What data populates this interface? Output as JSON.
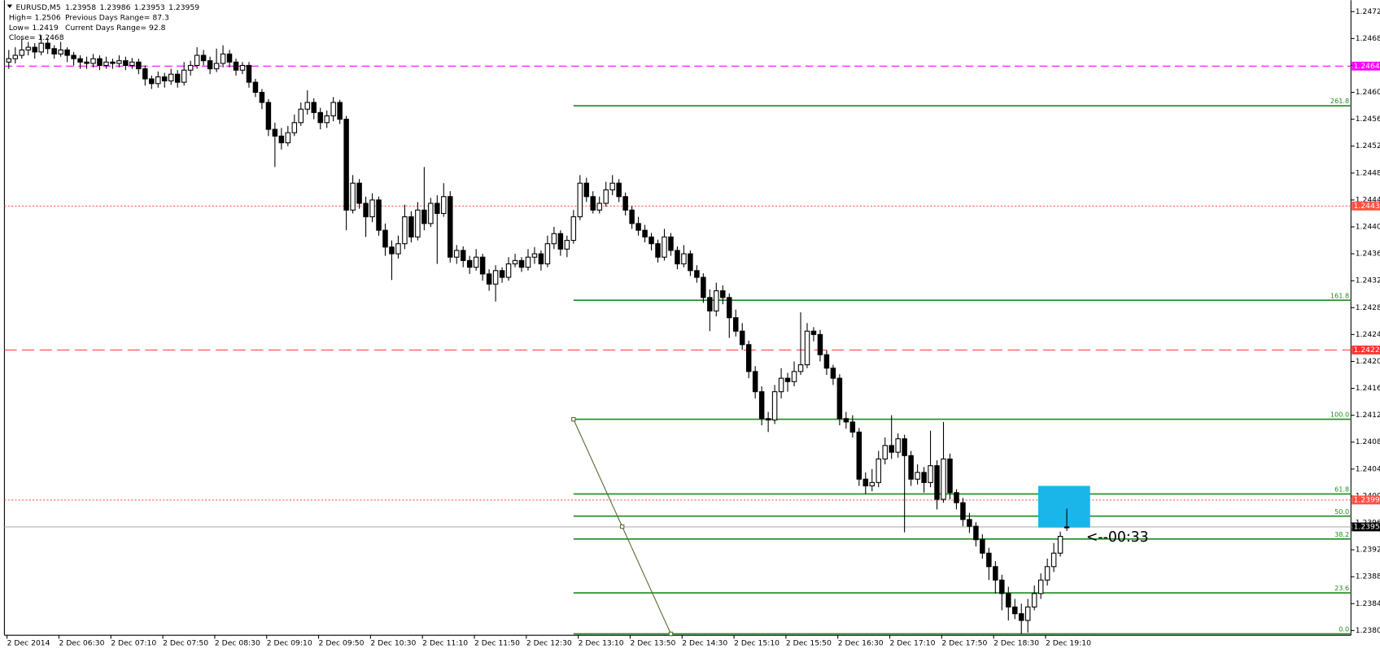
{
  "chart_data": {
    "type": "candlestick",
    "symbol": "EURUSD,M5",
    "info": [
      [
        "High= 1.2506",
        "Previous Days Range= 87.3"
      ],
      [
        "Low= 1.2419",
        "Current Days Range= 92.8"
      ],
      [
        "Close= 1.2468"
      ]
    ],
    "categories": [
      "2 Dec 2014",
      null,
      null,
      null,
      null,
      null,
      null,
      null,
      "2 Dec 06:30",
      null,
      null,
      null,
      null,
      null,
      null,
      null,
      "2 Dec 07:10",
      null,
      null,
      null,
      null,
      null,
      null,
      null,
      "2 Dec 07:50",
      null,
      null,
      null,
      null,
      null,
      null,
      null,
      "2 Dec 08:30",
      null,
      null,
      null,
      null,
      null,
      null,
      null,
      "2 Dec 09:10",
      null,
      null,
      null,
      null,
      null,
      null,
      null,
      "2 Dec 09:50",
      null,
      null,
      null,
      null,
      null,
      null,
      null,
      "2 Dec 10:30",
      null,
      null,
      null,
      null,
      null,
      null,
      null,
      "2 Dec 11:10",
      null,
      null,
      null,
      null,
      null,
      null,
      null,
      "2 Dec 11:50",
      null,
      null,
      null,
      null,
      null,
      null,
      null,
      "2 Dec 12:30",
      null,
      null,
      null,
      null,
      null,
      null,
      null,
      "2 Dec 13:10",
      null,
      null,
      null,
      null,
      null,
      null,
      null,
      "2 Dec 13:50",
      null,
      null,
      null,
      null,
      null,
      null,
      null,
      "2 Dec 14:30",
      null,
      null,
      null,
      null,
      null,
      null,
      null,
      "2 Dec 15:10",
      null,
      null,
      null,
      null,
      null,
      null,
      null,
      "2 Dec 15:50",
      null,
      null,
      null,
      null,
      null,
      null,
      null,
      "2 Dec 16:30",
      null,
      null,
      null,
      null,
      null,
      null,
      null,
      "2 Dec 17:10",
      null,
      null,
      null,
      null,
      null,
      null,
      null,
      "2 Dec 17:50",
      null,
      null,
      null,
      null,
      null,
      null,
      null,
      "2 Dec 18:30",
      null,
      null,
      null,
      null,
      null,
      null,
      null,
      "2 Dec 19:10",
      null,
      null,
      null
    ],
    "ohlc": [
      [
        1.2465,
        1.24668,
        1.2464,
        1.24655
      ],
      [
        1.24655,
        1.24672,
        1.24648,
        1.2466
      ],
      [
        1.2466,
        1.24685,
        1.24655,
        1.24668
      ],
      [
        1.24668,
        1.2468,
        1.2466,
        1.24672
      ],
      [
        1.24672,
        1.24678,
        1.24655,
        1.24665
      ],
      [
        1.24665,
        1.2469,
        1.2466,
        1.24678
      ],
      [
        1.24678,
        1.24685,
        1.24662,
        1.2467
      ],
      [
        1.2467,
        1.24675,
        1.24655,
        1.24662
      ],
      [
        1.24662,
        1.2468,
        1.24658,
        1.24668
      ],
      [
        1.24668,
        1.24672,
        1.2465,
        1.2466
      ],
      [
        1.2466,
        1.24665,
        1.24645,
        1.24655
      ],
      [
        1.24655,
        1.2466,
        1.2464,
        1.2465
      ],
      [
        1.2465,
        1.24658,
        1.2464,
        1.24648
      ],
      [
        1.24648,
        1.24662,
        1.24642,
        1.24655
      ],
      [
        1.24655,
        1.2466,
        1.24638,
        1.24645
      ],
      [
        1.24645,
        1.24658,
        1.2464,
        1.2465
      ],
      [
        1.2465,
        1.24655,
        1.2464,
        1.24648
      ],
      [
        1.24648,
        1.2466,
        1.24642,
        1.24652
      ],
      [
        1.24652,
        1.24658,
        1.24638,
        1.24645
      ],
      [
        1.24645,
        1.24656,
        1.2464,
        1.2465
      ],
      [
        1.2465,
        1.24655,
        1.24632,
        1.2464
      ],
      [
        1.2464,
        1.24645,
        1.24615,
        1.24625
      ],
      [
        1.24625,
        1.2463,
        1.2461,
        1.24618
      ],
      [
        1.24618,
        1.24636,
        1.24612,
        1.24628
      ],
      [
        1.24628,
        1.24634,
        1.24612,
        1.24622
      ],
      [
        1.24622,
        1.2464,
        1.24616,
        1.24632
      ],
      [
        1.24632,
        1.24638,
        1.24612,
        1.2462
      ],
      [
        1.2462,
        1.2465,
        1.24615,
        1.24638
      ],
      [
        1.24638,
        1.24652,
        1.2463,
        1.24645
      ],
      [
        1.24645,
        1.24672,
        1.2464,
        1.2466
      ],
      [
        1.2466,
        1.24668,
        1.24645,
        1.24652
      ],
      [
        1.24652,
        1.24658,
        1.24632,
        1.2464
      ],
      [
        1.2464,
        1.2467,
        1.24635,
        1.24648
      ],
      [
        1.24648,
        1.24675,
        1.24642,
        1.24662
      ],
      [
        1.24662,
        1.24668,
        1.24642,
        1.2465
      ],
      [
        1.2465,
        1.24655,
        1.2463,
        1.24638
      ],
      [
        1.24638,
        1.2465,
        1.24632,
        1.24645
      ],
      [
        1.24645,
        1.2465,
        1.24612,
        1.2462
      ],
      [
        1.2462,
        1.24625,
        1.24598,
        1.24605
      ],
      [
        1.24605,
        1.2461,
        1.2458,
        1.2459
      ],
      [
        1.2459,
        1.24595,
        1.2454,
        1.2455
      ],
      [
        1.2455,
        1.2456,
        1.24494,
        1.2454
      ],
      [
        1.2454,
        1.24552,
        1.2452,
        1.2453
      ],
      [
        1.2453,
        1.24555,
        1.24525,
        1.24545
      ],
      [
        1.24545,
        1.24572,
        1.2454,
        1.2456
      ],
      [
        1.2456,
        1.2459,
        1.24555,
        1.2458
      ],
      [
        1.2458,
        1.24608,
        1.24572,
        1.2459
      ],
      [
        1.2459,
        1.24596,
        1.24565,
        1.24575
      ],
      [
        1.24575,
        1.24582,
        1.2455,
        1.2456
      ],
      [
        1.2456,
        1.24578,
        1.24552,
        1.2457
      ],
      [
        1.2457,
        1.24598,
        1.24562,
        1.2459
      ],
      [
        1.2459,
        1.24594,
        1.24558,
        1.24565
      ],
      [
        1.24565,
        1.2457,
        1.244,
        1.2443
      ],
      [
        1.2443,
        1.24482,
        1.24425,
        1.2447
      ],
      [
        1.2447,
        1.24476,
        1.24432,
        1.2444
      ],
      [
        1.2444,
        1.2445,
        1.2439,
        1.2442
      ],
      [
        1.2442,
        1.24455,
        1.24412,
        1.24445
      ],
      [
        1.24445,
        1.2445,
        1.24392,
        1.244
      ],
      [
        1.244,
        1.2441,
        1.24362,
        1.24375
      ],
      [
        1.24375,
        1.24385,
        1.24326,
        1.24365
      ],
      [
        1.24365,
        1.24392,
        1.24358,
        1.2438
      ],
      [
        1.2438,
        1.24438,
        1.24372,
        1.2442
      ],
      [
        1.2442,
        1.24428,
        1.24382,
        1.2439
      ],
      [
        1.2439,
        1.24442,
        1.24385,
        1.2443
      ],
      [
        1.2443,
        1.24494,
        1.244,
        1.2441
      ],
      [
        1.2441,
        1.24448,
        1.24405,
        1.2444
      ],
      [
        1.2444,
        1.24452,
        1.2435,
        1.24425
      ],
      [
        1.24425,
        1.2447,
        1.2442,
        1.2445
      ],
      [
        1.2445,
        1.24458,
        1.24352,
        1.2436
      ],
      [
        1.2436,
        1.24378,
        1.2435,
        1.2437
      ],
      [
        1.2437,
        1.24376,
        1.24345,
        1.24355
      ],
      [
        1.24355,
        1.24362,
        1.24335,
        1.24345
      ],
      [
        1.24345,
        1.24372,
        1.2434,
        1.2436
      ],
      [
        1.2436,
        1.24365,
        1.24325,
        1.24335
      ],
      [
        1.24335,
        1.24342,
        1.2431,
        1.2432
      ],
      [
        1.2432,
        1.24348,
        1.24294,
        1.2434
      ],
      [
        1.2434,
        1.24345,
        1.24322,
        1.2433
      ],
      [
        1.2433,
        1.2436,
        1.24325,
        1.2435
      ],
      [
        1.2435,
        1.24365,
        1.24345,
        1.24355
      ],
      [
        1.24355,
        1.2436,
        1.24338,
        1.24345
      ],
      [
        1.24345,
        1.24372,
        1.2434,
        1.2436
      ],
      [
        1.2436,
        1.24375,
        1.2435,
        1.24365
      ],
      [
        1.24365,
        1.2437,
        1.2434,
        1.2435
      ],
      [
        1.2435,
        1.24392,
        1.24345,
        1.2438
      ],
      [
        1.2438,
        1.24405,
        1.24372,
        1.24395
      ],
      [
        1.24395,
        1.244,
        1.24362,
        1.24372
      ],
      [
        1.24372,
        1.24392,
        1.2436,
        1.24385
      ],
      [
        1.24385,
        1.2443,
        1.2438,
        1.2442
      ],
      [
        1.2442,
        1.24482,
        1.24415,
        1.2447
      ],
      [
        1.2447,
        1.24478,
        1.24442,
        1.2445
      ],
      [
        1.2445,
        1.24458,
        1.24425,
        1.2443
      ],
      [
        1.2443,
        1.2445,
        1.24425,
        1.2444
      ],
      [
        1.2444,
        1.24472,
        1.24435,
        1.2446
      ],
      [
        1.2446,
        1.24482,
        1.24452,
        1.2447
      ],
      [
        1.2447,
        1.24476,
        1.24442,
        1.2445
      ],
      [
        1.2445,
        1.24456,
        1.24422,
        1.2443
      ],
      [
        1.2443,
        1.24436,
        1.24402,
        1.2441
      ],
      [
        1.2441,
        1.2442,
        1.24392,
        1.244
      ],
      [
        1.244,
        1.24408,
        1.24382,
        1.2439
      ],
      [
        1.2439,
        1.24396,
        1.2437,
        1.2438
      ],
      [
        1.2438,
        1.24386,
        1.24352,
        1.2436
      ],
      [
        1.2436,
        1.24402,
        1.24355,
        1.2439
      ],
      [
        1.2439,
        1.24396,
        1.24362,
        1.2437
      ],
      [
        1.2437,
        1.24376,
        1.24342,
        1.2435
      ],
      [
        1.2435,
        1.24378,
        1.24345,
        1.24365
      ],
      [
        1.24365,
        1.2437,
        1.24332,
        1.2434
      ],
      [
        1.2434,
        1.24348,
        1.24322,
        1.2433
      ],
      [
        1.2433,
        1.24336,
        1.24292,
        1.243
      ],
      [
        1.243,
        1.24312,
        1.2425,
        1.2428
      ],
      [
        1.2428,
        1.24322,
        1.24272,
        1.2431
      ],
      [
        1.2431,
        1.24318,
        1.2429,
        1.243
      ],
      [
        1.243,
        1.24306,
        1.2424,
        1.2427
      ],
      [
        1.2427,
        1.24282,
        1.24242,
        1.2425
      ],
      [
        1.2425,
        1.24262,
        1.24222,
        1.2423
      ],
      [
        1.2423,
        1.24236,
        1.2418,
        1.2419
      ],
      [
        1.2419,
        1.24198,
        1.2415,
        1.2416
      ],
      [
        1.2416,
        1.24168,
        1.2411,
        1.2412
      ],
      [
        1.2412,
        1.2413,
        1.241,
        1.24118
      ],
      [
        1.24118,
        1.2417,
        1.24112,
        1.2416
      ],
      [
        1.2416,
        1.24195,
        1.2415,
        1.2418
      ],
      [
        1.2418,
        1.24188,
        1.2416,
        1.24175
      ],
      [
        1.24175,
        1.24205,
        1.24168,
        1.2419
      ],
      [
        1.2419,
        1.24278,
        1.24185,
        1.242
      ],
      [
        1.242,
        1.24262,
        1.24195,
        1.2425
      ],
      [
        1.2425,
        1.24256,
        1.24235,
        1.24245
      ],
      [
        1.24245,
        1.24252,
        1.24205,
        1.24215
      ],
      [
        1.24215,
        1.24222,
        1.24185,
        1.24195
      ],
      [
        1.24195,
        1.242,
        1.2417,
        1.2418
      ],
      [
        1.2418,
        1.24186,
        1.2411,
        1.2412
      ],
      [
        1.2412,
        1.2413,
        1.24105,
        1.24115
      ],
      [
        1.24115,
        1.24125,
        1.24092,
        1.241
      ],
      [
        1.241,
        1.24106,
        1.2402,
        1.2403
      ],
      [
        1.2403,
        1.2404,
        1.24008,
        1.2402
      ],
      [
        1.2402,
        1.24045,
        1.24012,
        1.24025
      ],
      [
        1.24025,
        1.24072,
        1.24018,
        1.2406
      ],
      [
        1.2406,
        1.24092,
        1.24052,
        1.2408
      ],
      [
        1.2408,
        1.24125,
        1.2406,
        1.2407
      ],
      [
        1.2407,
        1.24098,
        1.24062,
        1.2409
      ],
      [
        1.2409,
        1.24096,
        1.23951,
        1.24065
      ],
      [
        1.24065,
        1.24072,
        1.2402,
        1.2403
      ],
      [
        1.2403,
        1.24052,
        1.24022,
        1.2404
      ],
      [
        1.2404,
        1.24048,
        1.2401,
        1.24025
      ],
      [
        1.24025,
        1.24102,
        1.24018,
        1.2405
      ],
      [
        1.2405,
        1.24058,
        1.23985,
        1.24
      ],
      [
        1.24,
        1.24115,
        1.23995,
        1.2406
      ],
      [
        1.2406,
        1.24068,
        1.24,
        1.2401
      ],
      [
        1.2401,
        1.24015,
        1.23985,
        1.23995
      ],
      [
        1.23995,
        1.24002,
        1.2396,
        1.2397
      ],
      [
        1.2397,
        1.2398,
        1.2395,
        1.2396
      ],
      [
        1.2396,
        1.23966,
        1.2393,
        1.2394
      ],
      [
        1.2394,
        1.23948,
        1.23912,
        1.2392
      ],
      [
        1.2392,
        1.23928,
        1.2388,
        1.239
      ],
      [
        1.239,
        1.23908,
        1.2386,
        1.2388
      ],
      [
        1.2388,
        1.23888,
        1.23835,
        1.2386
      ],
      [
        1.2386,
        1.2387,
        1.2382,
        1.2384
      ],
      [
        1.2384,
        1.23852,
        1.23822,
        1.2383
      ],
      [
        1.2383,
        1.23845,
        1.238,
        1.2382
      ],
      [
        1.2382,
        1.23852,
        1.23802,
        1.2384
      ],
      [
        1.2384,
        1.23872,
        1.23835,
        1.2386
      ],
      [
        1.2386,
        1.2389,
        1.23852,
        1.2388
      ],
      [
        1.2388,
        1.23912,
        1.23872,
        1.239
      ],
      [
        1.239,
        1.23935,
        1.23892,
        1.2392
      ],
      [
        1.2392,
        1.23952,
        1.23915,
        1.23945
      ],
      [
        1.23958,
        1.23986,
        1.23953,
        1.23959
      ]
    ],
    "ylim": [
      1.23798,
      1.24742
    ],
    "yticks": [
      1.24725,
      1.24685,
      1.24645,
      1.24605,
      1.24565,
      1.24525,
      1.24485,
      1.24445,
      1.24405,
      1.24365,
      1.24325,
      1.24285,
      1.24245,
      1.24205,
      1.24165,
      1.24125,
      1.24085,
      1.24045,
      1.24005,
      1.23965,
      1.23925,
      1.23885,
      1.23845,
      1.23805
    ],
    "levels": [
      {
        "price": 1.24644,
        "color": "#ff00ff",
        "style": "dashed"
      },
      {
        "price": 1.24436,
        "color": "#ff5040",
        "style": "dotted"
      },
      {
        "price": 1.24222,
        "color": "#ff3030",
        "style": "longdash"
      },
      {
        "price": 1.23999,
        "color": "#ff5040",
        "style": "dotted"
      },
      {
        "price": 1.23959,
        "color": "#000000",
        "style": "solid"
      }
    ],
    "fibonacci": {
      "from": 87,
      "to": 102,
      "high": 1.24119,
      "low": 1.238,
      "color": "#1e8a1e",
      "trend_color": "#556b2f",
      "levels": [
        {
          "label": "261.8",
          "price": 1.24585
        },
        {
          "label": "161.8",
          "price": 1.24296
        },
        {
          "label": "100.0",
          "price": 1.24119
        },
        {
          "label": "61.8",
          "price": 1.24008
        },
        {
          "label": "50.0",
          "price": 1.23975
        },
        {
          "label": "38.2",
          "price": 1.23941
        },
        {
          "label": "23.6",
          "price": 1.23861
        },
        {
          "label": "0.0",
          "price": 1.238
        }
      ]
    },
    "rectangle": {
      "from": 159,
      "to": 167,
      "top": 1.2402,
      "bottom": 1.23958,
      "color": "#1ab6ea"
    },
    "countdown": "<--00:33"
  }
}
